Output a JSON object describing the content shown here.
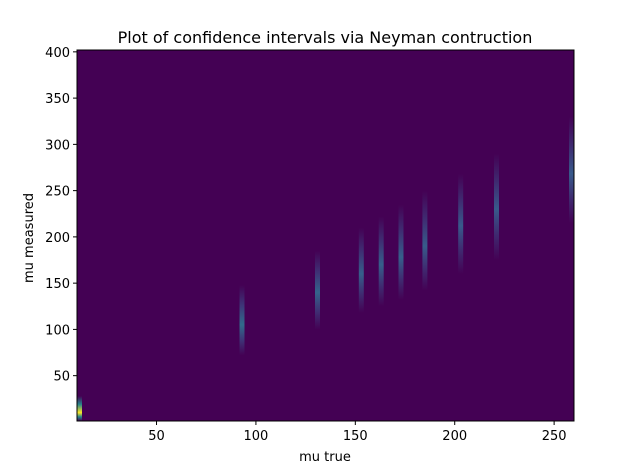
{
  "chart_data": {
    "type": "heatmap",
    "title": "Plot of confidence intervals via Neyman contruction",
    "xlabel": "mu true",
    "ylabel": "mu measured",
    "xlim": [
      10,
      260
    ],
    "ylim": [
      1,
      402
    ],
    "x_ticks": [
      50,
      100,
      150,
      200,
      250
    ],
    "y_ticks": [
      50,
      100,
      150,
      200,
      250,
      300,
      350,
      400
    ],
    "colormap": [
      "#440154",
      "#3b528b",
      "#21918c",
      "#5ec962",
      "#fde725"
    ],
    "background_color": "#440154",
    "grid": false,
    "intervals": [
      {
        "x": 10,
        "y_low": 1,
        "y_high": 28,
        "peak_y": 10,
        "peak_intensity": 1.0
      },
      {
        "x": 93,
        "y_low": 72,
        "y_high": 148,
        "peak_y": 105,
        "peak_intensity": 0.35
      },
      {
        "x": 131,
        "y_low": 100,
        "y_high": 185,
        "peak_y": 140,
        "peak_intensity": 0.32
      },
      {
        "x": 153,
        "y_low": 118,
        "y_high": 210,
        "peak_y": 160,
        "peak_intensity": 0.3
      },
      {
        "x": 163,
        "y_low": 125,
        "y_high": 222,
        "peak_y": 170,
        "peak_intensity": 0.3
      },
      {
        "x": 173,
        "y_low": 132,
        "y_high": 235,
        "peak_y": 178,
        "peak_intensity": 0.3
      },
      {
        "x": 185,
        "y_low": 142,
        "y_high": 250,
        "peak_y": 190,
        "peak_intensity": 0.29
      },
      {
        "x": 203,
        "y_low": 160,
        "y_high": 268,
        "peak_y": 212,
        "peak_intensity": 0.28
      },
      {
        "x": 221,
        "y_low": 175,
        "y_high": 290,
        "peak_y": 230,
        "peak_intensity": 0.28
      },
      {
        "x": 259,
        "y_low": 215,
        "y_high": 330,
        "peak_y": 268,
        "peak_intensity": 0.28
      }
    ]
  }
}
